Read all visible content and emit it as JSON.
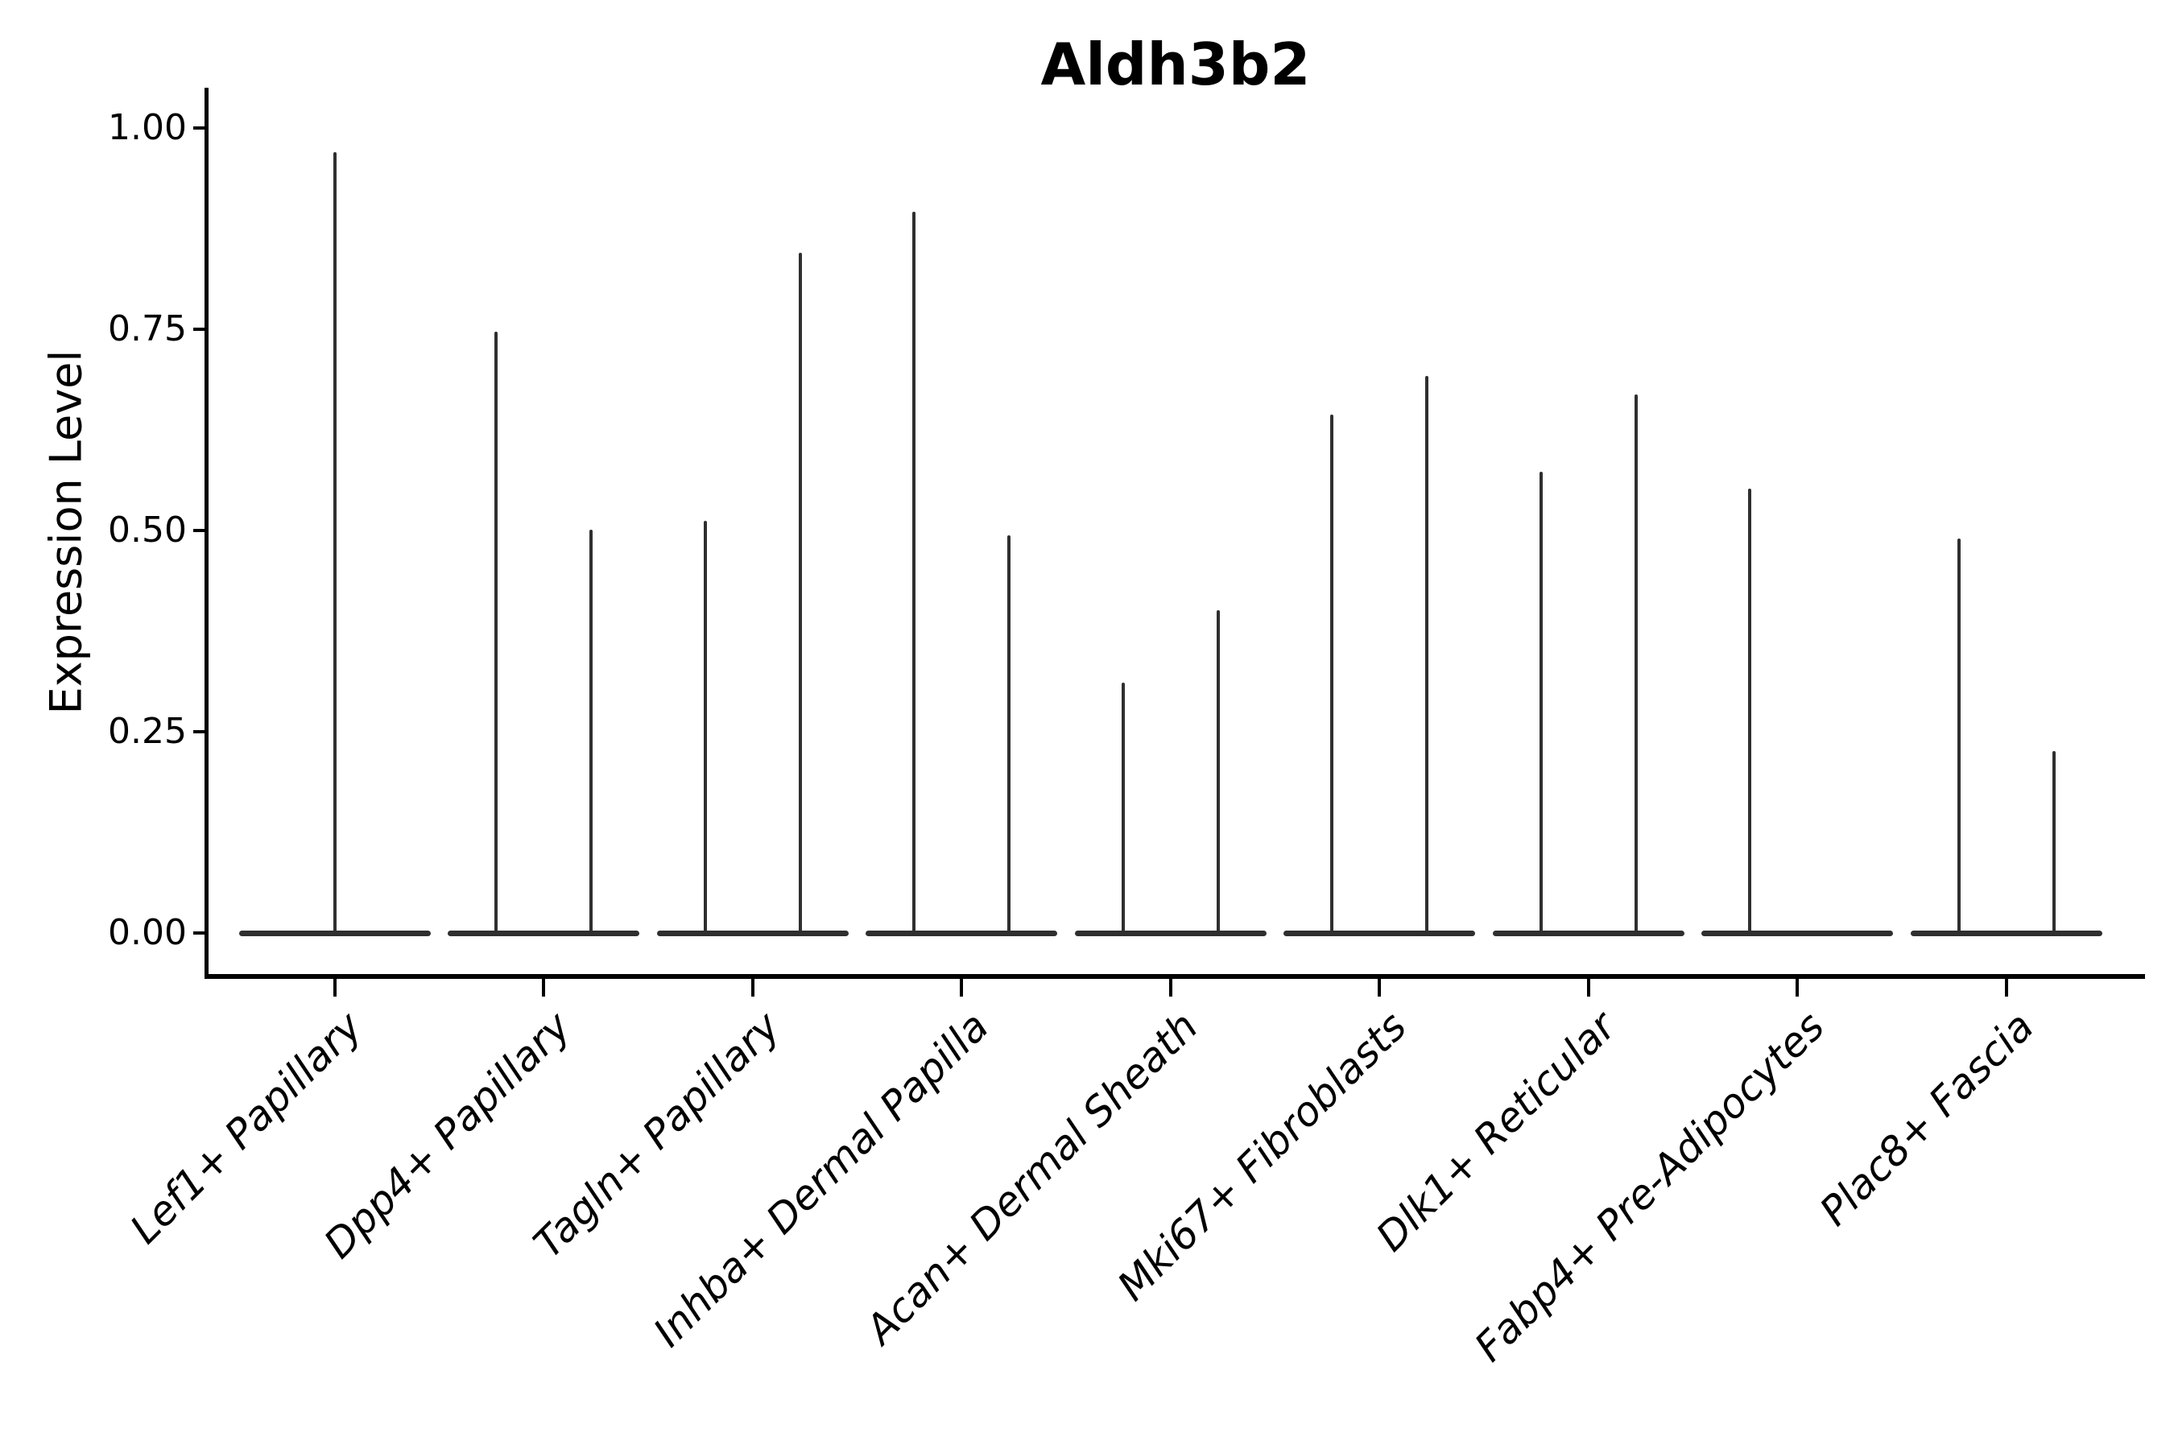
{
  "chart_data": {
    "type": "violin",
    "title": "Aldh3b2",
    "ylabel": "Expression Level",
    "xlabel": "",
    "grid": false,
    "legend": "none",
    "ylim": [
      -0.05,
      1.05
    ],
    "yticks": [
      {
        "label": "1.00",
        "value": 1.0
      },
      {
        "label": "0.75",
        "value": 0.75
      },
      {
        "label": "0.50",
        "value": 0.5
      },
      {
        "label": "0.25",
        "value": 0.25
      },
      {
        "label": "0.00",
        "value": 0.0
      }
    ],
    "categories": [
      {
        "label": "Lef1+ Papillary",
        "spikes": [
          {
            "offset": 0,
            "max": 0.97
          }
        ]
      },
      {
        "label": "Dpp4+ Papillary",
        "spikes": [
          {
            "offset": -59,
            "max": 0.747
          },
          {
            "offset": 59,
            "max": 0.501
          }
        ]
      },
      {
        "label": "Tagln+ Papillary",
        "spikes": [
          {
            "offset": -59,
            "max": 0.512
          },
          {
            "offset": 59,
            "max": 0.845
          }
        ]
      },
      {
        "label": "Inhba+ Dermal Papilla",
        "spikes": [
          {
            "offset": -59,
            "max": 0.896
          },
          {
            "offset": 59,
            "max": 0.494
          }
        ]
      },
      {
        "label": "Acan+ Dermal Sheath",
        "spikes": [
          {
            "offset": -59,
            "max": 0.311
          },
          {
            "offset": 59,
            "max": 0.401
          }
        ]
      },
      {
        "label": "Mki67+ Fibroblasts",
        "spikes": [
          {
            "offset": -59,
            "max": 0.644
          },
          {
            "offset": 59,
            "max": 0.692
          }
        ]
      },
      {
        "label": "Dlk1+ Reticular",
        "spikes": [
          {
            "offset": -59,
            "max": 0.573
          },
          {
            "offset": 59,
            "max": 0.669
          }
        ]
      },
      {
        "label": "Fabp4+ Pre-Adipocytes",
        "spikes": [
          {
            "offset": -59,
            "max": 0.552
          }
        ]
      },
      {
        "label": "Plac8+ Fascia",
        "spikes": [
          {
            "offset": -59,
            "max": 0.49
          },
          {
            "offset": 59,
            "max": 0.226
          }
        ]
      }
    ],
    "colors": {
      "violin": "#2f2f2f",
      "axis": "#000000",
      "text": "#000000",
      "background": "#ffffff"
    }
  }
}
